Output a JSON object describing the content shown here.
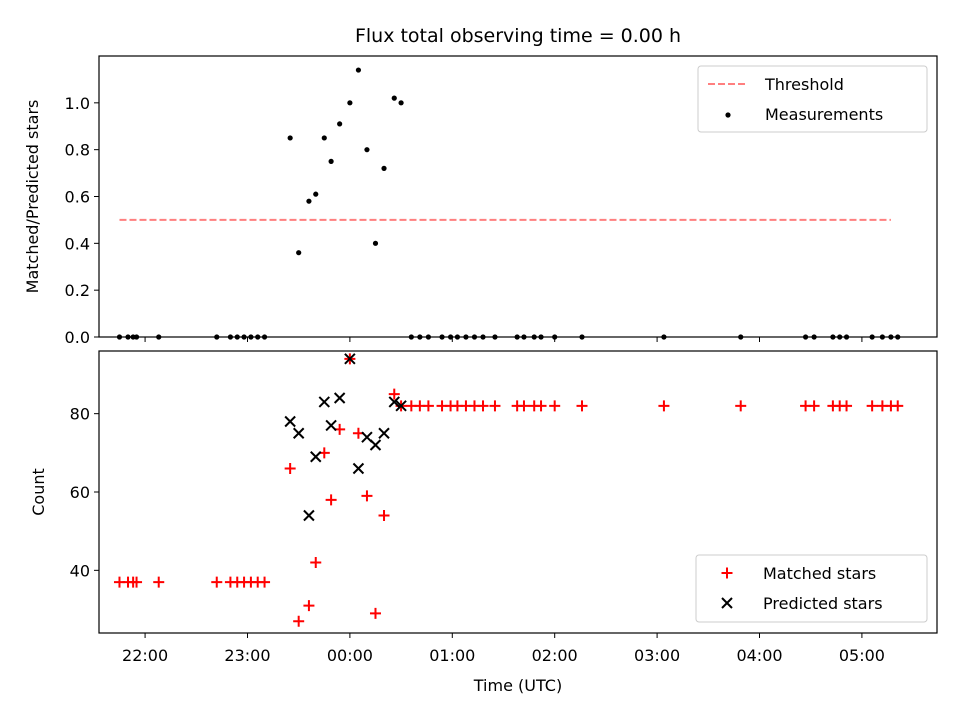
{
  "chart_data": [
    {
      "type": "scatter",
      "title": "Flux total observing time = 0.00 h",
      "ylabel": "Matched/Predicted stars",
      "xlabel": "",
      "xlim": [
        "21:33",
        "05:44"
      ],
      "ylim": [
        0,
        1.2
      ],
      "yticks": [
        0.0,
        0.2,
        0.4,
        0.6,
        0.8,
        1.0
      ],
      "ytick_labels": [
        "0.0",
        "0.2",
        "0.4",
        "0.6",
        "0.8",
        "1.0"
      ],
      "legend_position": "top-right",
      "series": [
        {
          "name": "Threshold",
          "kind": "dashed-line",
          "color": "#ff7f7f",
          "x": [
            "21:45",
            "05:17"
          ],
          "y": [
            0.5,
            0.5
          ]
        },
        {
          "name": "Measurements",
          "kind": "dot",
          "color": "#000000",
          "points": [
            [
              "21:45",
              0
            ],
            [
              "21:50",
              0
            ],
            [
              "21:53",
              0
            ],
            [
              "21:55",
              0
            ],
            [
              "22:08",
              0
            ],
            [
              "22:42",
              0
            ],
            [
              "22:50",
              0
            ],
            [
              "22:54",
              0
            ],
            [
              "22:58",
              0
            ],
            [
              "23:02",
              0
            ],
            [
              "23:06",
              0
            ],
            [
              "23:10",
              0
            ],
            [
              "23:25",
              0.85
            ],
            [
              "23:30",
              0.36
            ],
            [
              "23:36",
              0.58
            ],
            [
              "23:40",
              0.61
            ],
            [
              "23:45",
              0.85
            ],
            [
              "23:49",
              0.75
            ],
            [
              "23:54",
              0.91
            ],
            [
              "24:00",
              1.0
            ],
            [
              "24:05",
              1.14
            ],
            [
              "24:10",
              0.8
            ],
            [
              "24:15",
              0.4
            ],
            [
              "24:20",
              0.72
            ],
            [
              "24:26",
              1.02
            ],
            [
              "24:30",
              1.0
            ],
            [
              "24:36",
              0
            ],
            [
              "24:41",
              0
            ],
            [
              "24:46",
              0
            ],
            [
              "24:54",
              0
            ],
            [
              "24:59",
              0
            ],
            [
              "25:03",
              0
            ],
            [
              "25:08",
              0
            ],
            [
              "25:13",
              0
            ],
            [
              "25:18",
              0
            ],
            [
              "25:25",
              0
            ],
            [
              "25:38",
              0
            ],
            [
              "25:42",
              0
            ],
            [
              "25:48",
              0
            ],
            [
              "25:52",
              0
            ],
            [
              "26:00",
              0
            ],
            [
              "26:16",
              0
            ],
            [
              "27:04",
              0
            ],
            [
              "27:49",
              0
            ],
            [
              "28:27",
              0
            ],
            [
              "28:32",
              0
            ],
            [
              "28:43",
              0
            ],
            [
              "28:47",
              0
            ],
            [
              "28:51",
              0
            ],
            [
              "29:06",
              0
            ],
            [
              "29:12",
              0
            ],
            [
              "29:17",
              0
            ],
            [
              "29:21",
              0
            ]
          ]
        }
      ]
    },
    {
      "type": "scatter",
      "title": "",
      "ylabel": "Count",
      "xlabel": "Time (UTC)",
      "xlim": [
        "21:33",
        "05:44"
      ],
      "ylim": [
        24,
        96
      ],
      "yticks": [
        40,
        60,
        80
      ],
      "ytick_labels": [
        "40",
        "60",
        "80"
      ],
      "xticks": [
        "22:00",
        "23:00",
        "00:00",
        "01:00",
        "02:00",
        "03:00",
        "04:00",
        "05:00"
      ],
      "legend_position": "bottom-right",
      "series": [
        {
          "name": "Matched stars",
          "kind": "plus",
          "color": "#ff0000",
          "points": [
            [
              "21:45",
              37
            ],
            [
              "21:50",
              37
            ],
            [
              "21:53",
              37
            ],
            [
              "21:55",
              37
            ],
            [
              "22:08",
              37
            ],
            [
              "22:42",
              37
            ],
            [
              "22:50",
              37
            ],
            [
              "22:54",
              37
            ],
            [
              "22:58",
              37
            ],
            [
              "23:02",
              37
            ],
            [
              "23:06",
              37
            ],
            [
              "23:10",
              37
            ],
            [
              "23:25",
              66
            ],
            [
              "23:30",
              27
            ],
            [
              "23:36",
              31
            ],
            [
              "23:40",
              42
            ],
            [
              "23:45",
              70
            ],
            [
              "23:49",
              58
            ],
            [
              "23:54",
              76
            ],
            [
              "24:00",
              94
            ],
            [
              "24:05",
              75
            ],
            [
              "24:10",
              59
            ],
            [
              "24:15",
              29
            ],
            [
              "24:20",
              54
            ],
            [
              "24:26",
              85
            ],
            [
              "24:30",
              82
            ],
            [
              "24:36",
              82
            ],
            [
              "24:41",
              82
            ],
            [
              "24:46",
              82
            ],
            [
              "24:54",
              82
            ],
            [
              "24:59",
              82
            ],
            [
              "25:03",
              82
            ],
            [
              "25:08",
              82
            ],
            [
              "25:13",
              82
            ],
            [
              "25:18",
              82
            ],
            [
              "25:25",
              82
            ],
            [
              "25:38",
              82
            ],
            [
              "25:42",
              82
            ],
            [
              "25:48",
              82
            ],
            [
              "25:52",
              82
            ],
            [
              "26:00",
              82
            ],
            [
              "26:16",
              82
            ],
            [
              "27:04",
              82
            ],
            [
              "27:49",
              82
            ],
            [
              "28:27",
              82
            ],
            [
              "28:32",
              82
            ],
            [
              "28:43",
              82
            ],
            [
              "28:47",
              82
            ],
            [
              "28:51",
              82
            ],
            [
              "29:06",
              82
            ],
            [
              "29:12",
              82
            ],
            [
              "29:17",
              82
            ],
            [
              "29:21",
              82
            ]
          ]
        },
        {
          "name": "Predicted stars",
          "kind": "cross",
          "color": "#000000",
          "points": [
            [
              "23:25",
              78
            ],
            [
              "23:30",
              75
            ],
            [
              "23:36",
              54
            ],
            [
              "23:40",
              69
            ],
            [
              "23:45",
              83
            ],
            [
              "23:49",
              77
            ],
            [
              "23:54",
              84
            ],
            [
              "24:00",
              94
            ],
            [
              "24:05",
              66
            ],
            [
              "24:10",
              74
            ],
            [
              "24:15",
              72
            ],
            [
              "24:20",
              75
            ],
            [
              "24:26",
              83
            ],
            [
              "24:30",
              82
            ]
          ]
        }
      ]
    }
  ]
}
